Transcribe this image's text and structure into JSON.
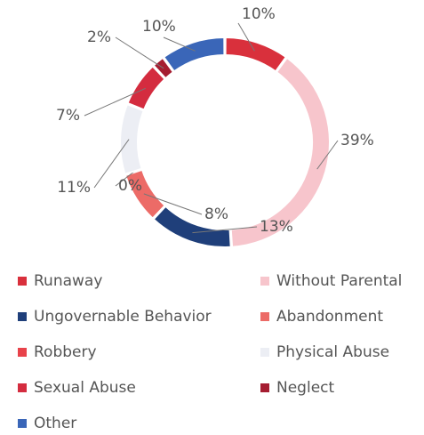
{
  "chart_data": {
    "type": "donut",
    "categories": [
      "Runaway",
      "Without Parental",
      "Ungovernable Behavior",
      "Abandonment",
      "Robbery",
      "Physical Abuse",
      "Sexual Abuse",
      "Neglect",
      "Other"
    ],
    "values": [
      10,
      39,
      13,
      8,
      0,
      11,
      7,
      2,
      10
    ],
    "value_labels": [
      "10%",
      "39%",
      "13%",
      "8%",
      "0%",
      "11%",
      "7%",
      "2%",
      "10%"
    ],
    "colors": [
      "#d9303c",
      "#f7c5cc",
      "#1f3f7a",
      "#ec6b67",
      "#e8424a",
      "#eceef4",
      "#d42c3f",
      "#a51d31",
      "#3a66b8"
    ],
    "legend": "bottom"
  }
}
